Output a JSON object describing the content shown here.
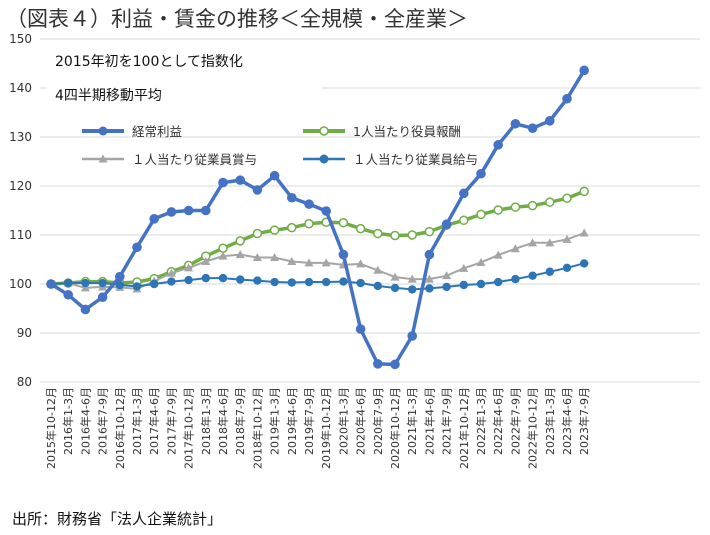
{
  "page_title": "（図表４）利益・賃金の推移＜全規模・全産業＞",
  "chart_data": {
    "type": "line",
    "title": "（図表４）利益・賃金の推移＜全規模・全産業＞",
    "annotations": [
      "2015年初を100として指数化",
      "4四半期移動平均"
    ],
    "source": "出所：財務省「法人企業統計」",
    "ylim": [
      80,
      150
    ],
    "yticks": [
      80,
      90,
      100,
      110,
      120,
      130,
      140,
      150
    ],
    "grid": true,
    "legend_position": "top",
    "categories": [
      "2015年10-12月",
      "2016年1-3月",
      "2016年4-6月",
      "2016年7-9月",
      "2016年10-12月",
      "2017年1-3月",
      "2017年4-6月",
      "2017年7-9月",
      "2017年10-12月",
      "2018年1-3月",
      "2018年4-6月",
      "2018年7-9月",
      "2018年10-12月",
      "2019年1-3月",
      "2019年4-6月",
      "2019年7-9月",
      "2019年10-12月",
      "2020年1-3月",
      "2020年4-6月",
      "2020年7-9月",
      "2020年10-12月",
      "2021年1-3月",
      "2021年4-6月",
      "2021年7-9月",
      "2021年10-12月",
      "2022年1-3月",
      "2022年4-6月",
      "2022年7-9月",
      "2022年10-12月",
      "2023年1-3月",
      "2023年4-6月",
      "2023年7-9月"
    ],
    "series": [
      {
        "name": "経常利益",
        "color": "#4472c4",
        "marker": "circle-filled",
        "values": [
          100,
          97.8,
          94.8,
          97.3,
          101.5,
          107.5,
          113.3,
          114.7,
          115.0,
          115.0,
          120.7,
          121.2,
          119.2,
          122.1,
          117.6,
          116.3,
          114.9,
          106.0,
          90.8,
          83.7,
          83.6,
          89.4,
          106.0,
          112.2,
          118.5,
          122.5,
          128.4,
          132.7,
          131.8,
          133.3,
          137.8,
          143.6
        ]
      },
      {
        "name": "1人当たり役員報酬",
        "color": "#70ad47",
        "marker": "circle-open",
        "values": [
          100,
          100.2,
          100.5,
          100.5,
          100.2,
          100.4,
          101.1,
          102.5,
          103.8,
          105.7,
          107.3,
          108.8,
          110.3,
          111.0,
          111.5,
          112.3,
          112.6,
          112.5,
          111.3,
          110.3,
          109.9,
          110.0,
          110.7,
          112.0,
          113.0,
          114.2,
          115.1,
          115.7,
          116.0,
          116.7,
          117.5,
          118.9
        ]
      },
      {
        "name": "１人当たり従業員賞与",
        "color": "#a5a5a5",
        "marker": "triangle",
        "values": [
          100,
          100.2,
          99.2,
          99.4,
          99.3,
          99.0,
          100.6,
          102.2,
          103.3,
          104.6,
          105.7,
          106.0,
          105.4,
          105.4,
          104.6,
          104.3,
          104.3,
          103.9,
          104.1,
          102.8,
          101.4,
          101.0,
          101.0,
          101.7,
          103.2,
          104.4,
          105.9,
          107.2,
          108.4,
          108.4,
          109.1,
          110.4
        ]
      },
      {
        "name": "１人当たり従業員給与",
        "color": "#2e75b6",
        "marker": "circle-filled-small",
        "values": [
          100,
          100.2,
          100.2,
          100.2,
          99.8,
          99.5,
          100.0,
          100.5,
          100.8,
          101.2,
          101.2,
          100.9,
          100.7,
          100.4,
          100.3,
          100.4,
          100.4,
          100.5,
          100.2,
          99.6,
          99.2,
          98.9,
          99.1,
          99.4,
          99.8,
          100.0,
          100.4,
          101.0,
          101.7,
          102.5,
          103.3,
          104.2
        ]
      }
    ]
  }
}
